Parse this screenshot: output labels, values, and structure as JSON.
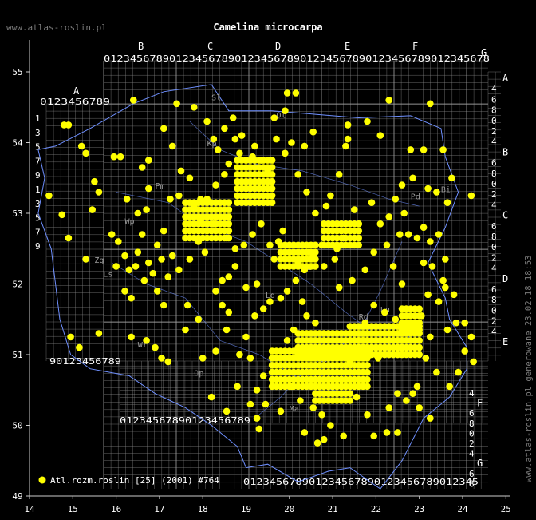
{
  "header": {
    "site": "www.atlas-roslin.pl",
    "title": "Camelina microcarpa"
  },
  "side_note": "www.atlas-roslin.pl generowane 23.02.18 18:53",
  "legend": {
    "label": "Atl.rozm.roslin [25] (2001) #764",
    "marker_color": "#ffff00"
  },
  "axes": {
    "x_ticks": [
      "14",
      "15",
      "16",
      "17",
      "18",
      "19",
      "20",
      "21",
      "22",
      "23",
      "24",
      "25"
    ],
    "y_ticks": [
      "49",
      "50",
      "51",
      "52",
      "53",
      "54",
      "55"
    ]
  },
  "grid_letters": {
    "top": [
      "A",
      "B",
      "C",
      "D",
      "E",
      "F",
      "G"
    ],
    "right": [
      "A",
      "B",
      "C",
      "D",
      "E",
      "F",
      "G"
    ]
  },
  "grid_digits": "0123456789",
  "region_codes": [
    "Sl",
    "Ol",
    "Pm",
    "Kp",
    "Wp",
    "Mz",
    "Lu",
    "Ld",
    "Ls",
    "Op",
    "Wr",
    "Ma",
    "Sw",
    "Pd",
    "Bi",
    "Zg",
    "Rd"
  ],
  "colors": {
    "background": "#000000",
    "grid": "#8a8a8a",
    "border": "#6f90ff",
    "point": "#ffff00",
    "text": "#ffffff"
  },
  "chart_data": {
    "type": "scatter",
    "xlabel": "",
    "ylabel": "",
    "xlim": [
      14,
      25
    ],
    "ylim": [
      49,
      55.5
    ],
    "series": [
      {
        "name": "Atl.rozm.roslin [25] (2001) #764",
        "points": [
          [
            14.8,
            54.25
          ],
          [
            14.9,
            54.25
          ],
          [
            14.45,
            53.25
          ],
          [
            14.75,
            52.98
          ],
          [
            14.9,
            52.65
          ],
          [
            15.2,
            53.95
          ],
          [
            15.3,
            53.85
          ],
          [
            15.5,
            53.45
          ],
          [
            15.6,
            53.3
          ],
          [
            15.45,
            53.05
          ],
          [
            15.95,
            53.8
          ],
          [
            16.1,
            53.8
          ],
          [
            15.9,
            52.7
          ],
          [
            16.05,
            52.6
          ],
          [
            16.2,
            52.4
          ],
          [
            16.3,
            52.2
          ],
          [
            16.25,
            53.2
          ],
          [
            16.5,
            53.0
          ],
          [
            16.7,
            53.05
          ],
          [
            16.6,
            52.7
          ],
          [
            16.5,
            52.45
          ],
          [
            16.75,
            52.3
          ],
          [
            16.85,
            52.15
          ],
          [
            16.95,
            51.9
          ],
          [
            17.1,
            51.7
          ],
          [
            16.7,
            51.2
          ],
          [
            16.9,
            51.1
          ],
          [
            17.05,
            50.95
          ],
          [
            17.2,
            50.9
          ],
          [
            17.6,
            51.35
          ],
          [
            16.0,
            52.25
          ],
          [
            16.45,
            52.25
          ],
          [
            16.2,
            51.9
          ],
          [
            16.35,
            51.8
          ],
          [
            16.65,
            52.05
          ],
          [
            16.75,
            53.35
          ],
          [
            16.6,
            53.65
          ],
          [
            16.75,
            53.75
          ],
          [
            16.4,
            54.6
          ],
          [
            17.1,
            54.2
          ],
          [
            17.4,
            54.55
          ],
          [
            17.8,
            54.5
          ],
          [
            17.3,
            53.95
          ],
          [
            17.5,
            53.6
          ],
          [
            17.7,
            53.5
          ],
          [
            17.95,
            53.2
          ],
          [
            18.1,
            53.2
          ],
          [
            18.3,
            53.4
          ],
          [
            18.5,
            53.55
          ],
          [
            18.6,
            53.7
          ],
          [
            18.1,
            54.3
          ],
          [
            18.25,
            54.05
          ],
          [
            18.35,
            53.9
          ],
          [
            18.5,
            54.2
          ],
          [
            18.7,
            54.35
          ],
          [
            18.75,
            54.05
          ],
          [
            18.9,
            54.1
          ],
          [
            18.85,
            53.85
          ],
          [
            19.0,
            53.75
          ],
          [
            19.15,
            53.8
          ],
          [
            19.2,
            53.95
          ],
          [
            19.35,
            53.75
          ],
          [
            19.5,
            53.6
          ],
          [
            19.7,
            54.05
          ],
          [
            19.9,
            53.85
          ],
          [
            20.05,
            54.0
          ],
          [
            19.95,
            54.7
          ],
          [
            20.15,
            54.7
          ],
          [
            20.35,
            53.95
          ],
          [
            20.2,
            53.55
          ],
          [
            20.4,
            53.3
          ],
          [
            20.6,
            53.0
          ],
          [
            20.85,
            53.1
          ],
          [
            20.95,
            53.25
          ],
          [
            21.15,
            53.55
          ],
          [
            21.3,
            53.95
          ],
          [
            21.35,
            54.25
          ],
          [
            21.8,
            54.3
          ],
          [
            22.1,
            54.1
          ],
          [
            22.3,
            54.6
          ],
          [
            22.8,
            53.9
          ],
          [
            23.25,
            54.55
          ],
          [
            23.1,
            53.9
          ],
          [
            23.55,
            53.9
          ],
          [
            23.75,
            53.5
          ],
          [
            23.4,
            53.3
          ],
          [
            23.2,
            53.35
          ],
          [
            24.2,
            53.25
          ],
          [
            22.6,
            53.4
          ],
          [
            22.45,
            53.2
          ],
          [
            22.1,
            52.85
          ],
          [
            22.3,
            52.95
          ],
          [
            22.55,
            52.7
          ],
          [
            22.75,
            52.7
          ],
          [
            22.95,
            52.65
          ],
          [
            23.1,
            52.8
          ],
          [
            23.25,
            52.6
          ],
          [
            23.45,
            52.7
          ],
          [
            23.1,
            52.3
          ],
          [
            23.3,
            52.25
          ],
          [
            23.6,
            52.35
          ],
          [
            23.55,
            52.05
          ],
          [
            23.6,
            51.95
          ],
          [
            23.8,
            51.85
          ],
          [
            23.45,
            51.75
          ],
          [
            23.2,
            51.85
          ],
          [
            23.05,
            51.55
          ],
          [
            23.25,
            51.25
          ],
          [
            23.65,
            51.35
          ],
          [
            23.85,
            51.45
          ],
          [
            24.05,
            51.45
          ],
          [
            24.2,
            51.25
          ],
          [
            24.05,
            51.05
          ],
          [
            24.25,
            50.9
          ],
          [
            23.9,
            50.75
          ],
          [
            23.7,
            50.55
          ],
          [
            23.4,
            50.75
          ],
          [
            23.15,
            50.95
          ],
          [
            22.95,
            50.55
          ],
          [
            22.7,
            50.35
          ],
          [
            22.5,
            50.45
          ],
          [
            22.3,
            50.25
          ],
          [
            22.25,
            49.9
          ],
          [
            22.5,
            49.9
          ],
          [
            23.25,
            50.1
          ],
          [
            21.2,
            50.65
          ],
          [
            21.55,
            50.4
          ],
          [
            21.8,
            50.15
          ],
          [
            21.4,
            50.9
          ],
          [
            21.75,
            51.45
          ],
          [
            21.95,
            51.7
          ],
          [
            22.2,
            51.6
          ],
          [
            22.45,
            51.5
          ],
          [
            22.3,
            51.2
          ],
          [
            22.05,
            50.95
          ],
          [
            21.15,
            51.95
          ],
          [
            21.45,
            52.05
          ],
          [
            21.75,
            52.2
          ],
          [
            21.95,
            52.45
          ],
          [
            22.25,
            52.55
          ],
          [
            21.1,
            52.5
          ],
          [
            20.9,
            52.75
          ],
          [
            20.75,
            52.55
          ],
          [
            20.55,
            52.4
          ],
          [
            20.35,
            52.2
          ],
          [
            20.15,
            52.05
          ],
          [
            19.95,
            51.9
          ],
          [
            19.8,
            51.8
          ],
          [
            19.55,
            51.75
          ],
          [
            19.4,
            51.65
          ],
          [
            19.2,
            51.55
          ],
          [
            19.0,
            51.25
          ],
          [
            18.85,
            51.0
          ],
          [
            19.1,
            50.95
          ],
          [
            19.4,
            50.7
          ],
          [
            19.25,
            50.5
          ],
          [
            19.1,
            50.3
          ],
          [
            19.45,
            50.3
          ],
          [
            19.8,
            50.2
          ],
          [
            20.05,
            50.55
          ],
          [
            20.25,
            50.35
          ],
          [
            20.55,
            50.25
          ],
          [
            20.75,
            50.15
          ],
          [
            20.65,
            49.75
          ],
          [
            20.8,
            49.8
          ],
          [
            20.95,
            50.0
          ],
          [
            21.25,
            49.85
          ],
          [
            19.25,
            50.1
          ],
          [
            18.55,
            50.2
          ],
          [
            18.2,
            50.4
          ],
          [
            18.0,
            50.95
          ],
          [
            18.3,
            51.05
          ],
          [
            18.55,
            51.35
          ],
          [
            18.6,
            51.6
          ],
          [
            18.45,
            51.7
          ],
          [
            18.3,
            51.9
          ],
          [
            18.45,
            52.05
          ],
          [
            18.6,
            52.1
          ],
          [
            18.75,
            52.25
          ],
          [
            19.0,
            51.95
          ],
          [
            19.25,
            52.0
          ],
          [
            18.05,
            52.45
          ],
          [
            17.9,
            52.6
          ],
          [
            17.7,
            52.35
          ],
          [
            17.45,
            52.2
          ],
          [
            17.3,
            52.4
          ],
          [
            17.1,
            52.75
          ],
          [
            16.95,
            52.55
          ],
          [
            17.05,
            52.35
          ],
          [
            17.2,
            52.1
          ],
          [
            19.95,
            51.2
          ],
          [
            20.1,
            51.35
          ],
          [
            20.4,
            51.55
          ],
          [
            20.6,
            51.45
          ],
          [
            20.3,
            51.75
          ],
          [
            20.2,
            52.3
          ],
          [
            20.45,
            52.45
          ],
          [
            20.8,
            52.25
          ],
          [
            21.05,
            52.35
          ],
          [
            21.25,
            52.65
          ],
          [
            21.5,
            53.05
          ],
          [
            21.6,
            52.85
          ],
          [
            21.9,
            53.15
          ],
          [
            19.65,
            52.35
          ],
          [
            19.55,
            52.55
          ],
          [
            19.75,
            52.6
          ],
          [
            19.85,
            52.75
          ],
          [
            19.35,
            52.85
          ],
          [
            19.15,
            52.7
          ],
          [
            18.95,
            52.55
          ],
          [
            18.75,
            52.5
          ],
          [
            18.55,
            52.65
          ],
          [
            18.25,
            52.85
          ],
          [
            17.95,
            52.9
          ],
          [
            17.8,
            53.1
          ],
          [
            15.3,
            52.35
          ],
          [
            15.6,
            51.3
          ],
          [
            15.15,
            51.1
          ],
          [
            14.95,
            51.25
          ],
          [
            16.35,
            51.25
          ],
          [
            17.45,
            53.25
          ],
          [
            17.25,
            53.2
          ],
          [
            18.8,
            50.55
          ],
          [
            19.3,
            49.95
          ],
          [
            20.35,
            49.9
          ],
          [
            21.95,
            49.85
          ],
          [
            22.85,
            50.45
          ],
          [
            23.0,
            50.25
          ],
          [
            17.9,
            51.5
          ],
          [
            17.65,
            51.7
          ],
          [
            22.85,
            53.5
          ],
          [
            22.65,
            53.0
          ],
          [
            23.65,
            53.15
          ],
          [
            22.4,
            52.25
          ],
          [
            22.6,
            52.0
          ],
          [
            19.9,
            54.45
          ],
          [
            19.65,
            54.35
          ],
          [
            20.55,
            54.15
          ],
          [
            21.35,
            54.05
          ]
        ]
      }
    ],
    "dense_areas": [
      {
        "x": [
          17.6,
          18.6
        ],
        "y": [
          52.65,
          53.2
        ]
      },
      {
        "x": [
          18.8,
          19.6
        ],
        "y": [
          53.15,
          53.75
        ]
      },
      {
        "x": [
          20.8,
          21.6
        ],
        "y": [
          52.55,
          52.85
        ]
      },
      {
        "x": [
          19.8,
          20.6
        ],
        "y": [
          52.25,
          52.55
        ]
      },
      {
        "x": [
          20.2,
          22.6
        ],
        "y": [
          51.0,
          51.35
        ]
      },
      {
        "x": [
          21.4,
          23.0
        ],
        "y": [
          51.0,
          51.4
        ]
      },
      {
        "x": [
          19.6,
          21.8
        ],
        "y": [
          50.55,
          51.05
        ]
      },
      {
        "x": [
          20.6,
          21.4
        ],
        "y": [
          50.35,
          50.65
        ]
      },
      {
        "x": [
          22.6,
          23.0
        ],
        "y": [
          51.35,
          51.7
        ]
      }
    ]
  }
}
